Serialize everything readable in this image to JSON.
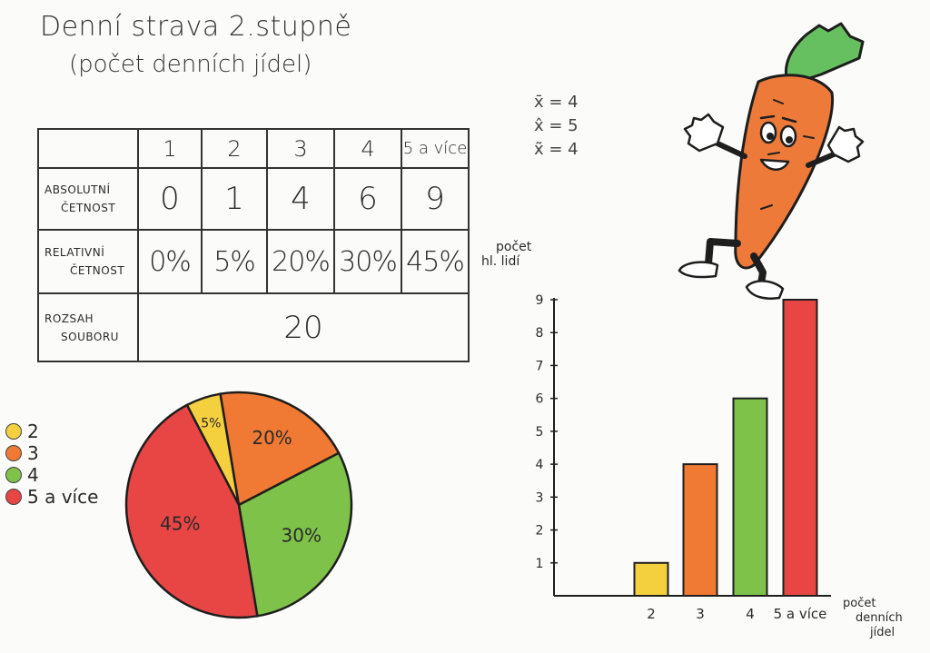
{
  "title": "Denní strava 2.stupně",
  "subtitle": "(počet denních jídel)",
  "stats": {
    "mean": "x̄ = 4",
    "mode": "x̂ = 5",
    "median": "x̃ = 4"
  },
  "table": {
    "headers": [
      "1",
      "2",
      "3",
      "4",
      "5 a více"
    ],
    "abs_label": [
      "ABSOLUTNÍ",
      "ČETNOST"
    ],
    "abs_values": [
      "0",
      "1",
      "4",
      "6",
      "9"
    ],
    "rel_label": [
      "RELATIVNÍ",
      "ČETNOST"
    ],
    "rel_values": [
      "0%",
      "5%",
      "20%",
      "30%",
      "45%"
    ],
    "size_label": [
      "ROZSAH",
      "SOUBORU"
    ],
    "size_value": "20"
  },
  "colors": {
    "yellow": "#f4d03f",
    "orange": "#f07a33",
    "green": "#7fc24a",
    "red": "#e84545",
    "carrot": "#ee7a3a",
    "leaf": "#66c060"
  },
  "pie_legend": [
    {
      "label": "2",
      "color": "#f4d03f"
    },
    {
      "label": "3",
      "color": "#f07a33"
    },
    {
      "label": "4",
      "color": "#7fc24a"
    },
    {
      "label": "5 a více",
      "color": "#e84545"
    }
  ],
  "chart_data": [
    {
      "type": "pie",
      "categories": [
        "2",
        "3",
        "4",
        "5 a více"
      ],
      "values": [
        5,
        20,
        30,
        45
      ],
      "labels": [
        "5%",
        "20%",
        "30%",
        "45%"
      ],
      "colors": [
        "#f4d03f",
        "#f07a33",
        "#7fc24a",
        "#e84545"
      ],
      "legend": "left"
    },
    {
      "type": "bar",
      "categories": [
        "2",
        "3",
        "4",
        "5 a více"
      ],
      "values": [
        1,
        4,
        6,
        9
      ],
      "colors": [
        "#f4d03f",
        "#f07a33",
        "#7fc24a",
        "#e84545"
      ],
      "ylabel": "počet hl. lidí",
      "xlabel": "počet denních jídel",
      "ylim": [
        0,
        9
      ],
      "yticks": [
        "1",
        "2",
        "3",
        "4",
        "5",
        "6",
        "7",
        "8",
        "9"
      ],
      "grid": false
    }
  ]
}
